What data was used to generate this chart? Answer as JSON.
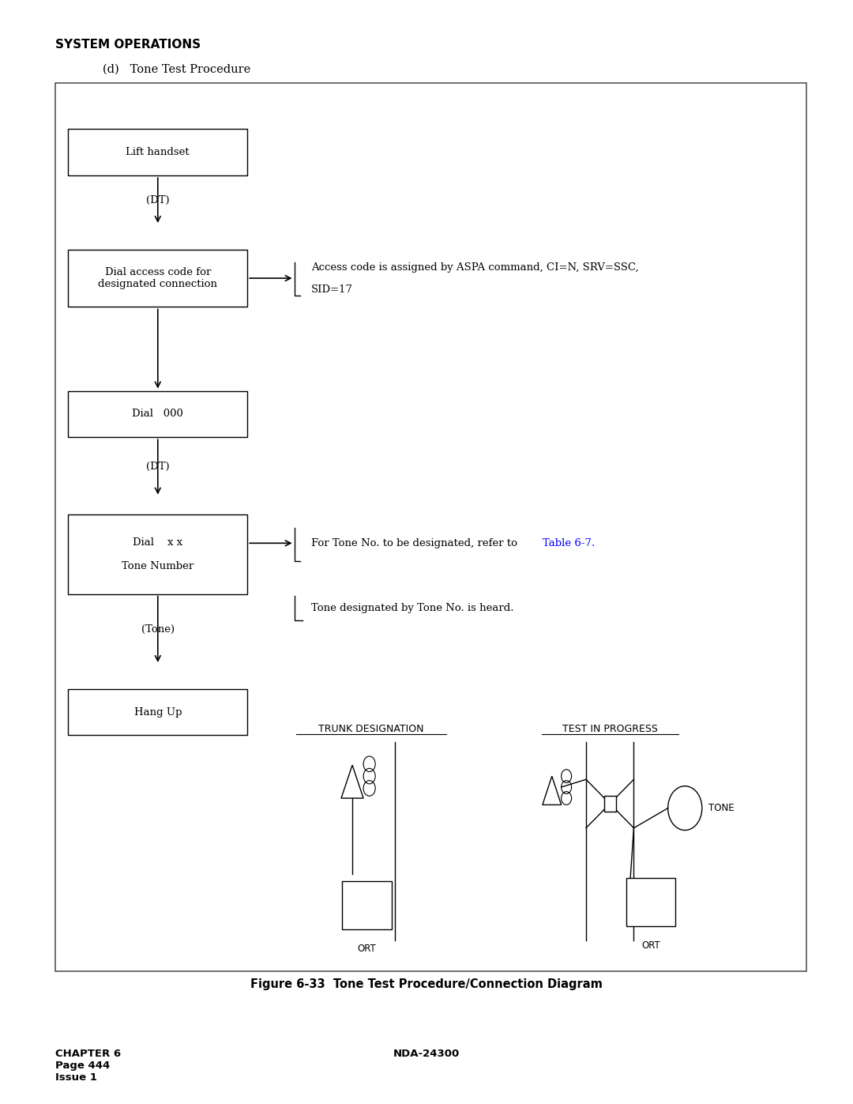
{
  "title": "SYSTEM OPERATIONS",
  "subtitle": "(d)   Tone Test Procedure",
  "figure_caption": "Figure 6-33  Tone Test Procedure/Connection Diagram",
  "footer_left": "CHAPTER 6\nPage 444\nIssue 1",
  "footer_right": "NDA-24300",
  "bg_color": "#ffffff"
}
